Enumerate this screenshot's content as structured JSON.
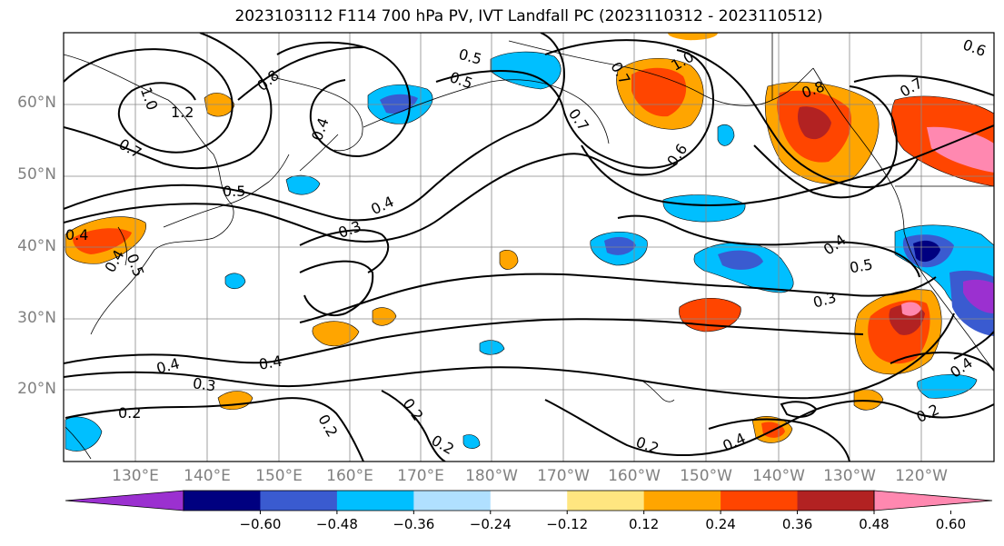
{
  "title": "2023103112 F114 700 hPa PV, IVT Landfall PC (2023110312 - 2023110512)",
  "lat_labels": [
    "60°N",
    "50°N",
    "40°N",
    "30°N",
    "20°N"
  ],
  "lon_labels": [
    "130°E",
    "140°E",
    "150°E",
    "160°E",
    "170°E",
    "180°W",
    "170°W",
    "160°W",
    "150°W",
    "140°W",
    "130°W",
    "120°W"
  ],
  "colorbar": {
    "colors": [
      "#9b30d0",
      "#000080",
      "#3a5bd0",
      "#00bfff",
      "#b0e0ff",
      "#ffffff",
      "#ffe680",
      "#ffa500",
      "#ff4500",
      "#b22222",
      "#ff88b0"
    ],
    "tick_labels": [
      "−0.60",
      "−0.48",
      "−0.36",
      "−0.24",
      "−0.12",
      "0.12",
      "0.24",
      "0.36",
      "0.48",
      "0.60"
    ]
  },
  "contour_labels": [
    "1.0",
    "1.2",
    "0.8",
    "0.7",
    "0.5",
    "0.4",
    "0.3",
    "0.5",
    "0.4",
    "0.6",
    "0.7",
    "0.5",
    "1.0",
    "0.7",
    "0.6",
    "0.8",
    "0.7",
    "0.4",
    "0.4",
    "0.5",
    "0.3",
    "0.4",
    "0.3",
    "0.2",
    "0.2",
    "0.2",
    "0.2",
    "0.2",
    "0.4",
    "0.4",
    "0.2",
    "0.4",
    "0.5",
    "0.4"
  ]
}
